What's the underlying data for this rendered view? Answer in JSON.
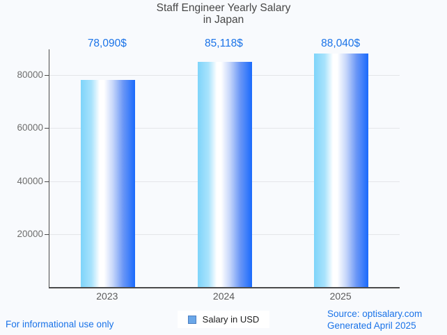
{
  "title": "Staff Engineer Yearly Salary\nin Japan",
  "chart_data": {
    "type": "bar",
    "title": "Staff Engineer Yearly Salary in Japan",
    "categories": [
      "2023",
      "2024",
      "2025"
    ],
    "values": [
      78090,
      85118,
      88040
    ],
    "value_labels": [
      "78,090$",
      "85,118$",
      "88,040$"
    ],
    "series": [
      {
        "name": "Salary in USD",
        "values": [
          78090,
          85118,
          88040
        ]
      }
    ],
    "xlabel": "",
    "ylabel": "",
    "ylim": [
      0,
      89600
    ],
    "yticks": [
      20000,
      40000,
      60000,
      80000
    ],
    "grid": true,
    "legend_position": "bottom",
    "bar_gradient": [
      "#7ed4fa",
      "#ffffff",
      "#1a6afc"
    ],
    "annotation_color": "#1a73e8"
  },
  "legend": {
    "label": "Salary in USD",
    "marker_fill": "#6ba7e8",
    "marker_border": "#4b7ec0"
  },
  "footer": {
    "disclaimer": "For informational use only",
    "source": "Source: optisalary.com",
    "generated": "Generated April 2025"
  }
}
